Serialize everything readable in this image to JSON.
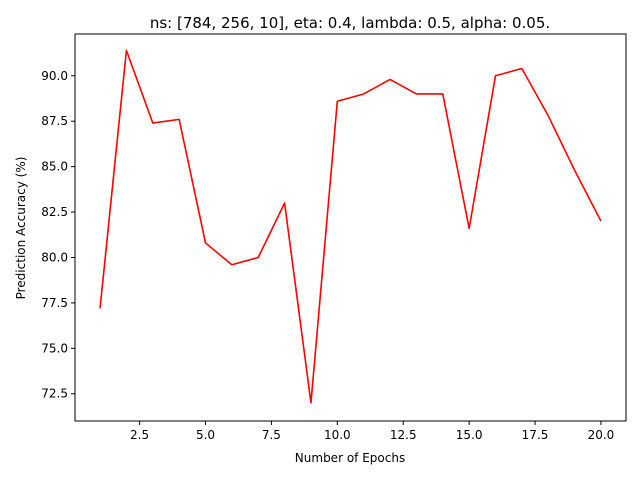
{
  "chart_data": {
    "type": "line",
    "title": "ns: [784, 256, 10], eta: 0.4, lambda: 0.5, alpha: 0.05.",
    "xlabel": "Number of Epochs",
    "ylabel": "Prediction Accuracy (%)",
    "xlim": [
      0.05,
      20.95
    ],
    "ylim": [
      71.0,
      92.3
    ],
    "xticks": [
      2.5,
      5.0,
      7.5,
      10.0,
      12.5,
      15.0,
      17.5,
      20.0
    ],
    "xtick_labels": [
      "2.5",
      "5.0",
      "7.5",
      "10.0",
      "12.5",
      "15.0",
      "17.5",
      "20.0"
    ],
    "yticks": [
      72.5,
      75.0,
      77.5,
      80.0,
      82.5,
      85.0,
      87.5,
      90.0
    ],
    "ytick_labels": [
      "72.5",
      "75.0",
      "77.5",
      "80.0",
      "82.5",
      "85.0",
      "87.5",
      "90.0"
    ],
    "grid": false,
    "series": [
      {
        "color": "#ff0000",
        "x": [
          1,
          2,
          3,
          4,
          5,
          6,
          7,
          8,
          9,
          10,
          11,
          12,
          13,
          14,
          15,
          16,
          17,
          18,
          19,
          20
        ],
        "y": [
          77.2,
          91.4,
          87.4,
          87.6,
          80.8,
          79.6,
          80.0,
          83.0,
          72.0,
          88.6,
          89.0,
          89.8,
          89.0,
          89.0,
          81.6,
          90.0,
          90.4,
          87.8,
          84.8,
          82.0
        ]
      }
    ]
  }
}
